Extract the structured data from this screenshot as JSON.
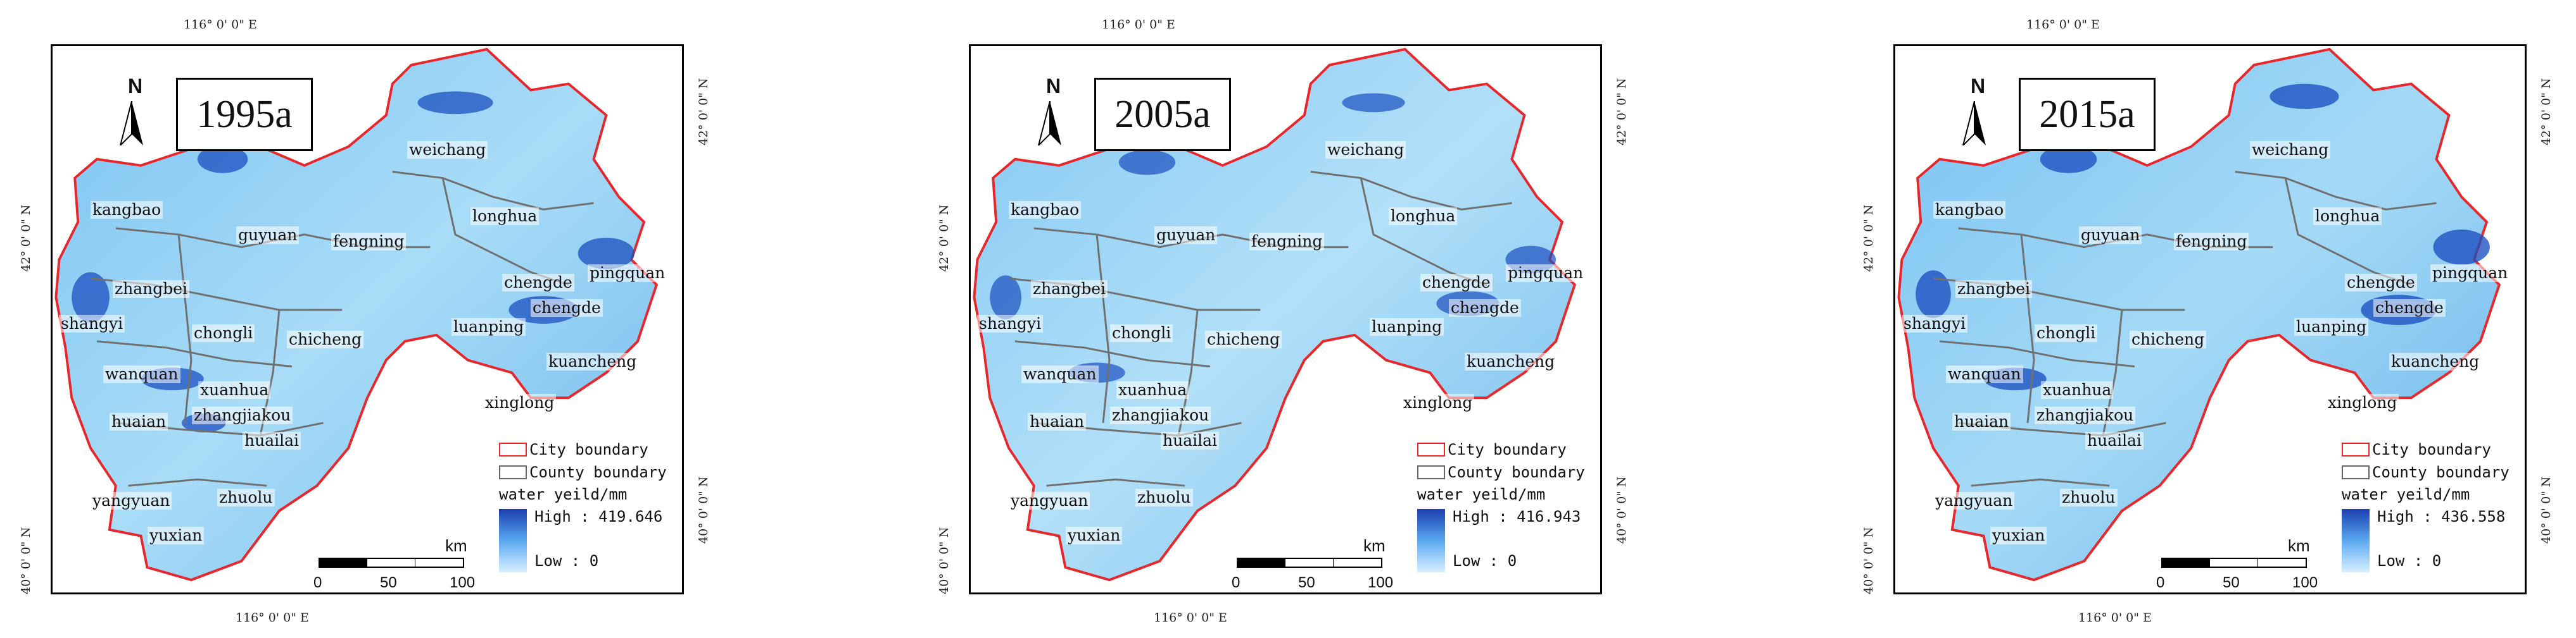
{
  "colors": {
    "city_boundary": "#e8272c",
    "county_boundary": "#707070",
    "water_high": "#1b3fb0",
    "water_mid": "#5aa8f0",
    "water_low": "#d8f0ff"
  },
  "coords": {
    "top_lon": "116° 0' 0\" E",
    "bottom_lon": "116° 0' 0\" E",
    "lat_north": "42° 0' 0\" N",
    "lat_south": "40° 0' 0\" N"
  },
  "north_arrow": {
    "letter": "N",
    "icon": "north-arrow-icon"
  },
  "scale": {
    "unit": "km",
    "ticks": [
      "0",
      "50",
      "100"
    ]
  },
  "legend": {
    "city_boundary": "City boundary",
    "county_boundary": "County boundary",
    "title": "water yeild/mm",
    "low": "Low : 0"
  },
  "places": [
    "weichang",
    "kangbao",
    "guyuan",
    "fengning",
    "longhua",
    "zhangbei",
    "shangyi",
    "chongli",
    "chicheng",
    "wanquan",
    "xuanhua",
    "huaian",
    "zhangjiakou",
    "huailai",
    "chengde",
    "pingquan",
    "luanping",
    "chengde",
    "kuancheng",
    "xinglong",
    "yangyuan",
    "zhuolu",
    "yuxian"
  ],
  "panels": [
    {
      "year": "1995a",
      "high": "High : 419.646"
    },
    {
      "year": "2005a",
      "high": "High : 416.943"
    },
    {
      "year": "2015a",
      "high": "High : 436.558"
    }
  ]
}
